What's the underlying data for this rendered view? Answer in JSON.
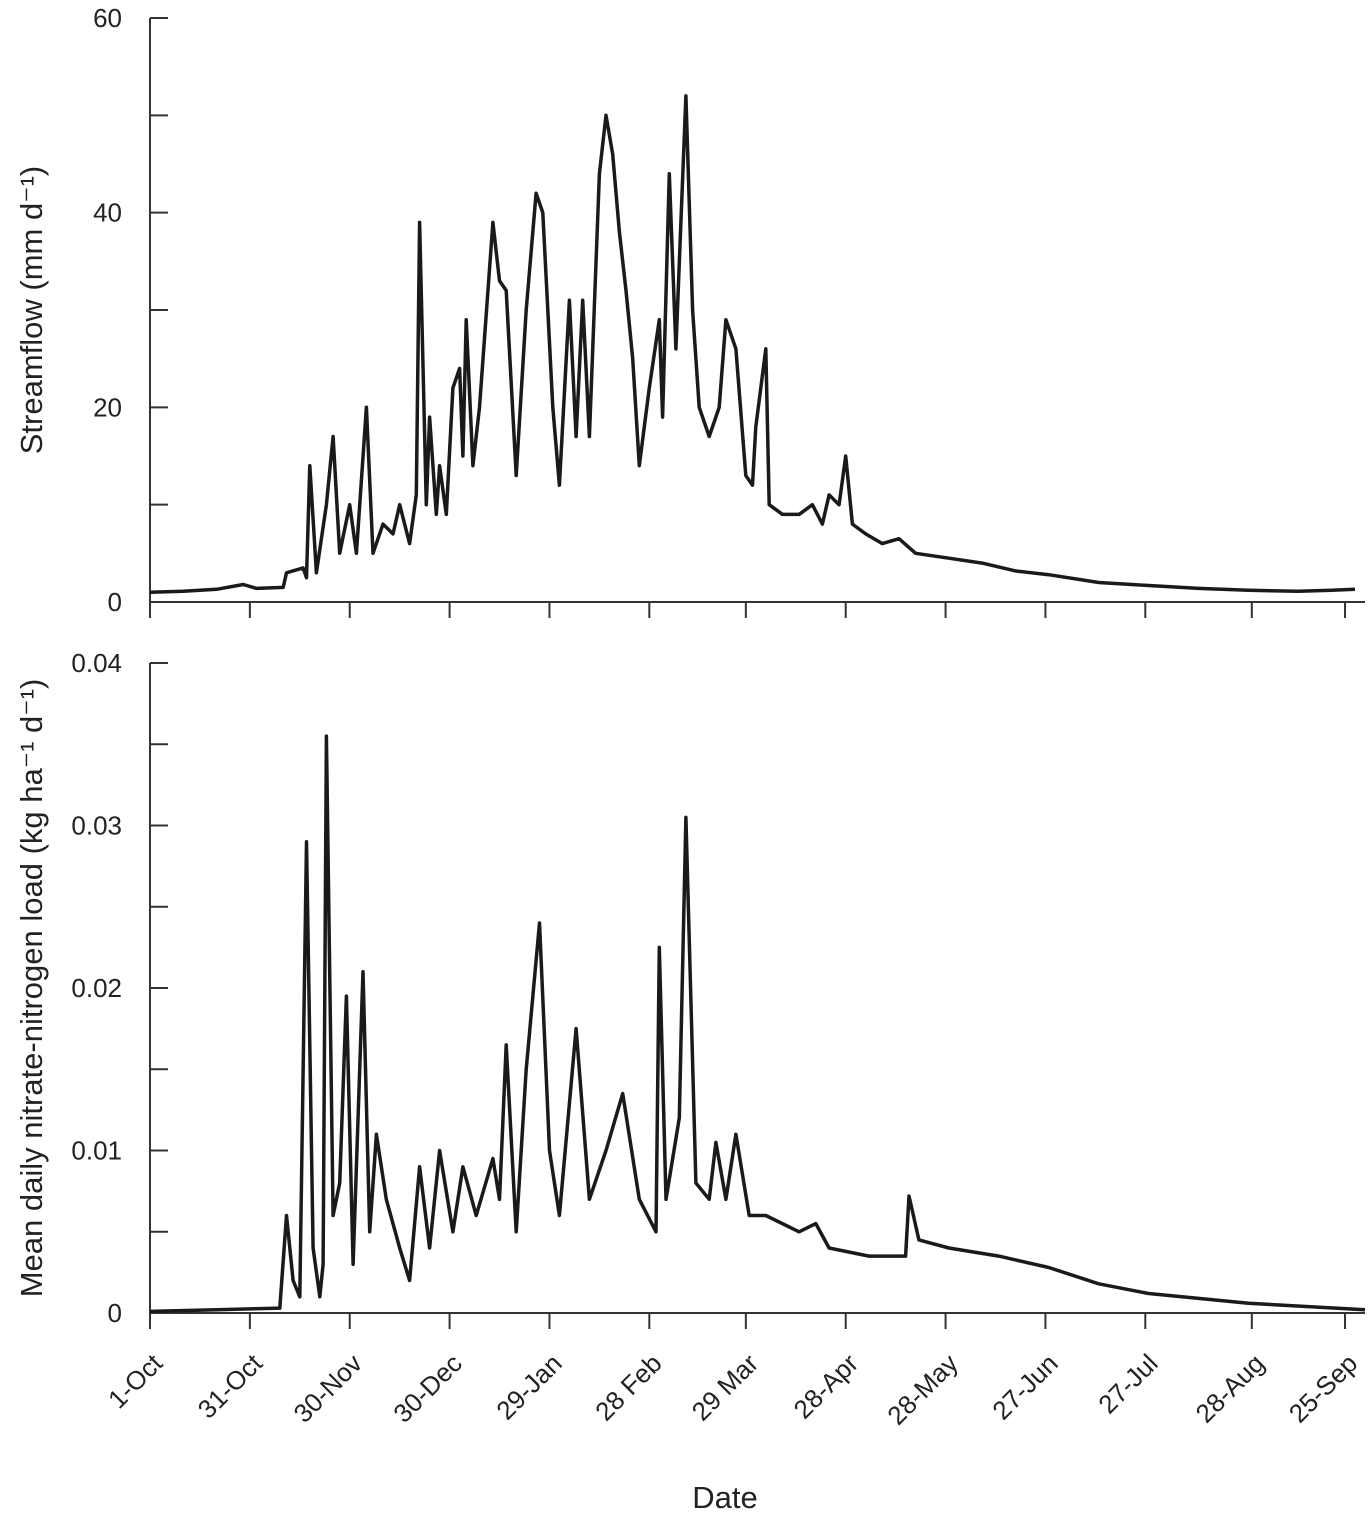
{
  "chart_data": [
    {
      "type": "line",
      "y_label": "Streamflow (mm d⁻¹)",
      "color": "#1a1a1a",
      "xlim": [
        0,
        365
      ],
      "xticks": [
        0,
        30,
        60,
        90,
        120,
        150,
        179,
        209,
        239,
        269,
        299,
        331,
        359
      ],
      "ylim": [
        0,
        60
      ],
      "yticks": [
        0,
        20,
        40,
        60
      ],
      "yminor": [
        10,
        30,
        50
      ],
      "x": [
        0,
        10,
        20,
        28,
        32,
        40,
        41,
        46,
        47,
        48,
        50,
        53,
        55,
        57,
        60,
        62,
        65,
        67,
        70,
        73,
        75,
        78,
        80,
        81,
        83,
        84,
        86,
        87,
        89,
        91,
        93,
        94,
        95,
        97,
        99,
        103,
        105,
        107,
        110,
        113,
        116,
        118,
        121,
        123,
        126,
        128,
        130,
        132,
        135,
        137,
        139,
        141,
        143,
        145,
        147,
        150,
        153,
        154,
        156,
        158,
        161,
        163,
        165,
        168,
        171,
        173,
        176,
        179,
        181,
        182,
        185,
        186,
        190,
        195,
        199,
        202,
        204,
        207,
        209,
        211,
        215,
        220,
        225,
        230,
        240,
        250,
        260,
        270,
        285,
        300,
        315,
        330,
        345,
        355,
        362
      ],
      "values": [
        1,
        1.1,
        1.3,
        1.8,
        1.4,
        1.5,
        3,
        3.5,
        2.5,
        14,
        3,
        10,
        17,
        5,
        10,
        5,
        20,
        5,
        8,
        7,
        10,
        6,
        11,
        39,
        10,
        19,
        9,
        14,
        9,
        22,
        24,
        15,
        29,
        14,
        20,
        39,
        33,
        32,
        13,
        30,
        42,
        40,
        20,
        12,
        31,
        17,
        31,
        17,
        44,
        50,
        46,
        38,
        32,
        25,
        14,
        22,
        29,
        19,
        44,
        26,
        52,
        30,
        20,
        17,
        20,
        29,
        26,
        13,
        12,
        18,
        26,
        10,
        9,
        9,
        10,
        8,
        11,
        10,
        15,
        8,
        7,
        6,
        6.5,
        5,
        4.5,
        4,
        3.2,
        2.8,
        2,
        1.7,
        1.4,
        1.2,
        1.1,
        1.2,
        1.3
      ]
    },
    {
      "type": "line",
      "y_label": "Mean daily nitrate-nitrogen load (kg ha⁻¹ d⁻¹)",
      "x_label": "Date",
      "color": "#1a1a1a",
      "xlim": [
        0,
        365
      ],
      "xticks": [
        {
          "value": 0,
          "label": "1-Oct"
        },
        {
          "value": 30,
          "label": "31-Oct"
        },
        {
          "value": 60,
          "label": "30-Nov"
        },
        {
          "value": 90,
          "label": "30-Dec"
        },
        {
          "value": 120,
          "label": "29-Jan"
        },
        {
          "value": 150,
          "label": "28 Feb"
        },
        {
          "value": 179,
          "label": "29 Mar"
        },
        {
          "value": 209,
          "label": "28-Apr"
        },
        {
          "value": 239,
          "label": "28-May"
        },
        {
          "value": 269,
          "label": "27-Jun"
        },
        {
          "value": 299,
          "label": "27-Jul"
        },
        {
          "value": 331,
          "label": "28-Aug"
        },
        {
          "value": 359,
          "label": "25-Sep"
        }
      ],
      "ylim": [
        0,
        0.04
      ],
      "yticks": [
        0,
        0.01,
        0.02,
        0.03,
        0.04
      ],
      "yminor": [
        0.005,
        0.015,
        0.025,
        0.035
      ],
      "x": [
        0,
        20,
        39,
        41,
        43,
        45,
        47,
        49,
        51,
        52,
        53,
        55,
        57,
        59,
        61,
        64,
        66,
        68,
        71,
        75,
        78,
        81,
        84,
        87,
        91,
        94,
        98,
        103,
        105,
        107,
        110,
        113,
        117,
        120,
        123,
        128,
        132,
        137,
        142,
        147,
        152,
        153,
        155,
        159,
        161,
        164,
        168,
        170,
        173,
        176,
        180,
        185,
        195,
        200,
        204,
        216,
        227,
        228,
        231,
        240,
        255,
        270,
        285,
        300,
        330,
        365
      ],
      "values": [
        0.0001,
        0.0002,
        0.0003,
        0.006,
        0.002,
        0.001,
        0.029,
        0.004,
        0.001,
        0.003,
        0.0355,
        0.006,
        0.008,
        0.0195,
        0.003,
        0.021,
        0.005,
        0.011,
        0.007,
        0.004,
        0.002,
        0.009,
        0.004,
        0.01,
        0.005,
        0.009,
        0.006,
        0.0095,
        0.007,
        0.0165,
        0.005,
        0.015,
        0.024,
        0.01,
        0.006,
        0.0175,
        0.007,
        0.01,
        0.0135,
        0.007,
        0.005,
        0.0225,
        0.007,
        0.012,
        0.0305,
        0.008,
        0.007,
        0.0105,
        0.007,
        0.011,
        0.006,
        0.006,
        0.005,
        0.0055,
        0.004,
        0.0035,
        0.0035,
        0.0072,
        0.0045,
        0.004,
        0.0035,
        0.0028,
        0.0018,
        0.0012,
        0.0006,
        0.0002
      ]
    }
  ]
}
